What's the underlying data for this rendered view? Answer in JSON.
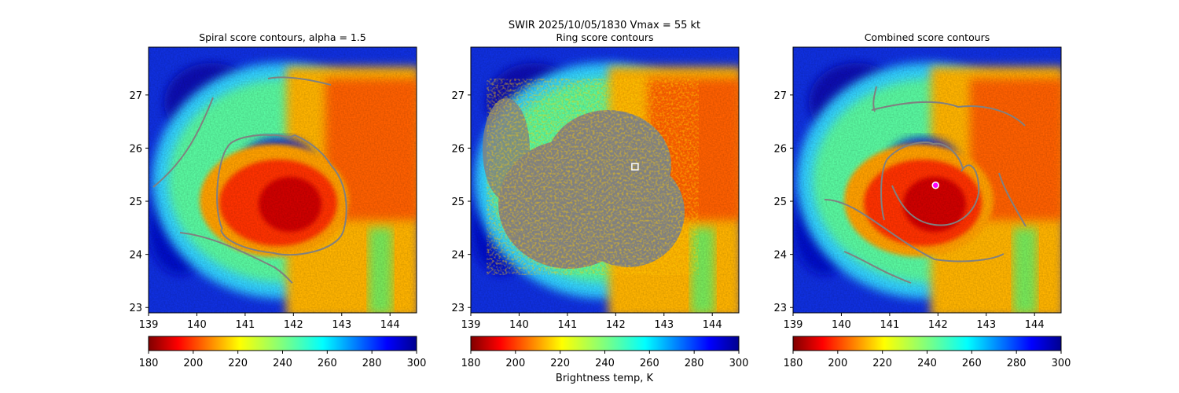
{
  "suptitle": "SWIR  2025/10/05/1830    Vmax = 55 kt",
  "colormap": {
    "name": "jet_r",
    "vmin": 180,
    "vmax": 300,
    "ticks": [
      "180",
      "200",
      "220",
      "240",
      "260",
      "280",
      "300"
    ],
    "label": "Brightness temp, K"
  },
  "colors": {
    "contour": "#808080",
    "marker": "#ffffff",
    "center_marker": "#ff00ff"
  },
  "chart_data": [
    {
      "type": "heatmap",
      "title": "Spiral score contours, alpha =  1.5",
      "xlim": [
        139,
        144.55
      ],
      "ylim": [
        22.9,
        27.9
      ],
      "xticks": [
        "139",
        "140",
        "141",
        "142",
        "143",
        "144"
      ],
      "yticks": [
        "23",
        "24",
        "25",
        "26",
        "27"
      ],
      "overlay": "spiral contour lines",
      "center_marker": null
    },
    {
      "type": "heatmap",
      "title": "Ring score contours",
      "xlim": [
        139,
        144.55
      ],
      "ylim": [
        22.9,
        27.9
      ],
      "xticks": [
        "139",
        "140",
        "141",
        "142",
        "143",
        "144"
      ],
      "yticks": [
        "23",
        "24",
        "25",
        "26",
        "27"
      ],
      "overlay": "ring score filled contours",
      "center_marker": {
        "shape": "square",
        "lon": 142.4,
        "lat": 25.65
      }
    },
    {
      "type": "heatmap",
      "title": "Combined score contours",
      "xlim": [
        139,
        144.55
      ],
      "ylim": [
        22.9,
        27.9
      ],
      "xticks": [
        "139",
        "140",
        "141",
        "142",
        "143",
        "144"
      ],
      "yticks": [
        "23",
        "24",
        "25",
        "26",
        "27"
      ],
      "overlay": "combined contour lines",
      "center_marker": {
        "shape": "circle",
        "lon": 141.95,
        "lat": 25.3
      }
    }
  ]
}
